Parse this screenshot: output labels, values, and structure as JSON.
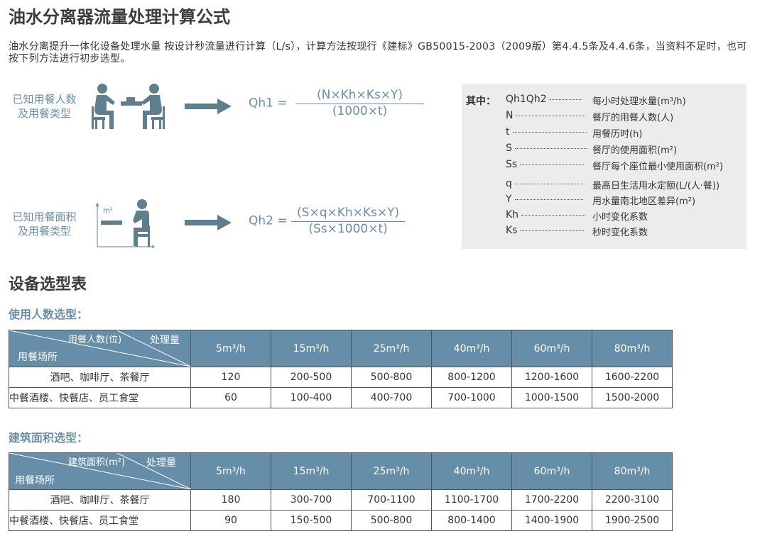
{
  "title": "油水分离器流量处理计算公式",
  "intro": "油水分离提升一体化设备处理水量 按设计秒流量进行计算（L/s），计算方法按现行《建标》GB50015-2003（2009版）第4.4.5条及4.4.6条，当资料不足时，也可按下列方法进行初步选型。",
  "methods": [
    {
      "label_line1": "已知用餐人数",
      "label_line2": "及用餐类型",
      "icon": "diners-at-table-icon",
      "lhs": "Qh1 =",
      "numerator": "(N×Kh×Ks×Y)",
      "denominator": "(1000×t)"
    },
    {
      "label_line1": "已知用餐面积",
      "label_line2": "及用餐类型",
      "icon": "diner-area-icon",
      "axis_label": "m²",
      "lhs": "Qh2 =",
      "numerator": "(S×q×Kh×Ks×Y)",
      "denominator": "(Ss×1000×t)"
    }
  ],
  "legend": {
    "heading": "其中：",
    "items": [
      {
        "sym": "Qh1Qh2",
        "desc": "每小时处理水量(m³/h)"
      },
      {
        "sym": "N",
        "desc": "餐厅的用餐人数(人)"
      },
      {
        "sym": "t",
        "desc": "用餐历时(h)"
      },
      {
        "sym": "S",
        "desc": "餐厅的使用面积(m²)"
      },
      {
        "sym": "Ss",
        "desc": "餐厅每个座位最小使用面积(m²)"
      },
      {
        "sym": "q",
        "desc": "最高日生活用水定额(L/(人·餐))"
      },
      {
        "sym": "Y",
        "desc": "用水量南北地区差异(m²)"
      },
      {
        "sym": "Kh",
        "desc": "小时变化系数"
      },
      {
        "sym": "Ks",
        "desc": "秒时变化系数"
      }
    ]
  },
  "section_title": "设备选型表",
  "tables": [
    {
      "title": "使用人数选型：",
      "corner_top": "用餐人数(位)",
      "corner_right": "处理量",
      "corner_bottom": "用餐场所",
      "columns": [
        "5m³/h",
        "15m³/h",
        "25m³/h",
        "40m³/h",
        "60m³/h",
        "80m³/h"
      ],
      "rows": [
        [
          "酒吧、咖啡厅、茶餐厅",
          "120",
          "200-500",
          "500-800",
          "800-1200",
          "1200-1600",
          "1600-2200"
        ],
        [
          "中餐酒楼、快餐店、员工食堂",
          "60",
          "100-400",
          "400-700",
          "700-1000",
          "1000-1500",
          "1500-2000"
        ]
      ]
    },
    {
      "title": "建筑面积选型：",
      "corner_top": "建筑面积(m²)",
      "corner_right": "处理量",
      "corner_bottom": "用餐场所",
      "columns": [
        "5m³/h",
        "15m³/h",
        "25m³/h",
        "40m³/h",
        "60m³/h",
        "80m³/h"
      ],
      "rows": [
        [
          "酒吧、咖啡厅、茶餐厅",
          "180",
          "300-700",
          "700-1100",
          "1100-1700",
          "1700-2200",
          "2200-3100"
        ],
        [
          "中餐酒楼、快餐店、员工食堂",
          "90",
          "150-500",
          "500-800",
          "800-1400",
          "1400-1900",
          "1900-2500"
        ]
      ]
    }
  ],
  "colors": {
    "accent": "#6a8fa6",
    "header_bg": "#668ea8",
    "legend_bg": "#ececec"
  }
}
